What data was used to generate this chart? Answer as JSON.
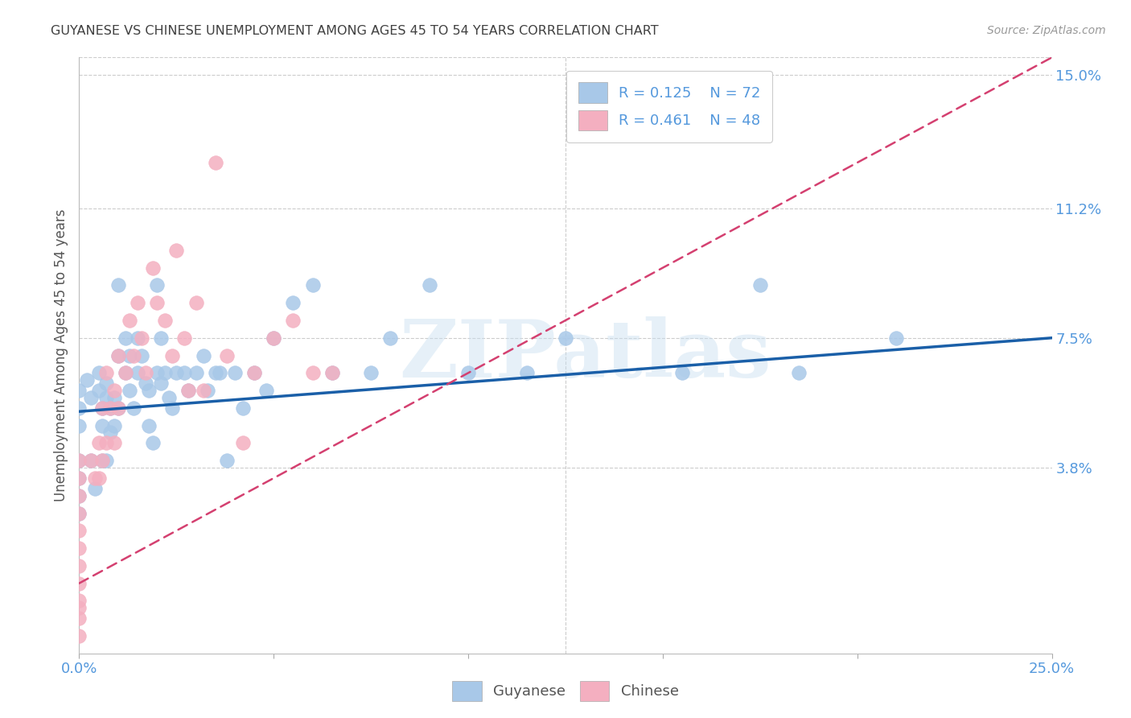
{
  "title": "GUYANESE VS CHINESE UNEMPLOYMENT AMONG AGES 45 TO 54 YEARS CORRELATION CHART",
  "source": "Source: ZipAtlas.com",
  "ylabel": "Unemployment Among Ages 45 to 54 years",
  "xlim": [
    0.0,
    0.25
  ],
  "ylim": [
    -0.015,
    0.155
  ],
  "xtick_positions": [
    0.0,
    0.05,
    0.1,
    0.15,
    0.2,
    0.25
  ],
  "ytick_vals_right": [
    0.038,
    0.075,
    0.112,
    0.15
  ],
  "ytick_labels_right": [
    "3.8%",
    "7.5%",
    "11.2%",
    "15.0%"
  ],
  "watermark": "ZIPatlas",
  "legend_r1": "R = 0.125",
  "legend_n1": "N = 72",
  "legend_r2": "R = 0.461",
  "legend_n2": "N = 48",
  "blue_scatter_color": "#a8c8e8",
  "pink_scatter_color": "#f4afc0",
  "blue_line_color": "#1a5fa8",
  "pink_line_color": "#d44070",
  "title_color": "#404040",
  "axis_label_color": "#555555",
  "tick_label_color": "#5599dd",
  "right_tick_color": "#5599dd",
  "background_color": "#ffffff",
  "grid_color": "#cccccc",
  "legend_blue": "#a8c8e8",
  "legend_pink": "#f4afc0",
  "guyanese_x": [
    0.0,
    0.0,
    0.0,
    0.0,
    0.0,
    0.0,
    0.0,
    0.002,
    0.003,
    0.003,
    0.004,
    0.005,
    0.005,
    0.006,
    0.006,
    0.006,
    0.007,
    0.007,
    0.007,
    0.008,
    0.008,
    0.009,
    0.009,
    0.01,
    0.01,
    0.01,
    0.012,
    0.012,
    0.013,
    0.013,
    0.014,
    0.015,
    0.015,
    0.016,
    0.017,
    0.018,
    0.018,
    0.019,
    0.02,
    0.02,
    0.021,
    0.021,
    0.022,
    0.023,
    0.024,
    0.025,
    0.027,
    0.028,
    0.03,
    0.032,
    0.033,
    0.035,
    0.036,
    0.038,
    0.04,
    0.042,
    0.045,
    0.048,
    0.05,
    0.055,
    0.06,
    0.065,
    0.075,
    0.08,
    0.09,
    0.1,
    0.115,
    0.125,
    0.155,
    0.175,
    0.185,
    0.21
  ],
  "guyanese_y": [
    0.06,
    0.055,
    0.05,
    0.04,
    0.035,
    0.03,
    0.025,
    0.063,
    0.058,
    0.04,
    0.032,
    0.065,
    0.06,
    0.055,
    0.05,
    0.04,
    0.062,
    0.058,
    0.04,
    0.055,
    0.048,
    0.058,
    0.05,
    0.09,
    0.07,
    0.055,
    0.075,
    0.065,
    0.07,
    0.06,
    0.055,
    0.075,
    0.065,
    0.07,
    0.062,
    0.06,
    0.05,
    0.045,
    0.09,
    0.065,
    0.075,
    0.062,
    0.065,
    0.058,
    0.055,
    0.065,
    0.065,
    0.06,
    0.065,
    0.07,
    0.06,
    0.065,
    0.065,
    0.04,
    0.065,
    0.055,
    0.065,
    0.06,
    0.075,
    0.085,
    0.09,
    0.065,
    0.065,
    0.075,
    0.09,
    0.065,
    0.065,
    0.075,
    0.065,
    0.09,
    0.065,
    0.075
  ],
  "chinese_x": [
    0.0,
    0.0,
    0.0,
    0.0,
    0.0,
    0.0,
    0.0,
    0.0,
    0.0,
    0.0,
    0.0,
    0.0,
    0.003,
    0.004,
    0.005,
    0.005,
    0.006,
    0.006,
    0.007,
    0.007,
    0.008,
    0.009,
    0.009,
    0.01,
    0.01,
    0.012,
    0.013,
    0.014,
    0.015,
    0.016,
    0.017,
    0.019,
    0.02,
    0.022,
    0.024,
    0.025,
    0.027,
    0.028,
    0.03,
    0.032,
    0.035,
    0.038,
    0.042,
    0.045,
    0.05,
    0.055,
    0.06,
    0.065
  ],
  "chinese_y": [
    -0.01,
    -0.005,
    -0.002,
    0.0,
    0.005,
    0.01,
    0.015,
    0.02,
    0.025,
    0.03,
    0.035,
    0.04,
    0.04,
    0.035,
    0.045,
    0.035,
    0.055,
    0.04,
    0.065,
    0.045,
    0.055,
    0.06,
    0.045,
    0.07,
    0.055,
    0.065,
    0.08,
    0.07,
    0.085,
    0.075,
    0.065,
    0.095,
    0.085,
    0.08,
    0.07,
    0.1,
    0.075,
    0.06,
    0.085,
    0.06,
    0.125,
    0.07,
    0.045,
    0.065,
    0.075,
    0.08,
    0.065,
    0.065
  ],
  "blue_trend_x0": 0.0,
  "blue_trend_x1": 0.25,
  "blue_trend_y0": 0.054,
  "blue_trend_y1": 0.075,
  "pink_trend_x0": 0.0,
  "pink_trend_x1": 0.25,
  "pink_trend_y0": 0.005,
  "pink_trend_y1": 0.155
}
